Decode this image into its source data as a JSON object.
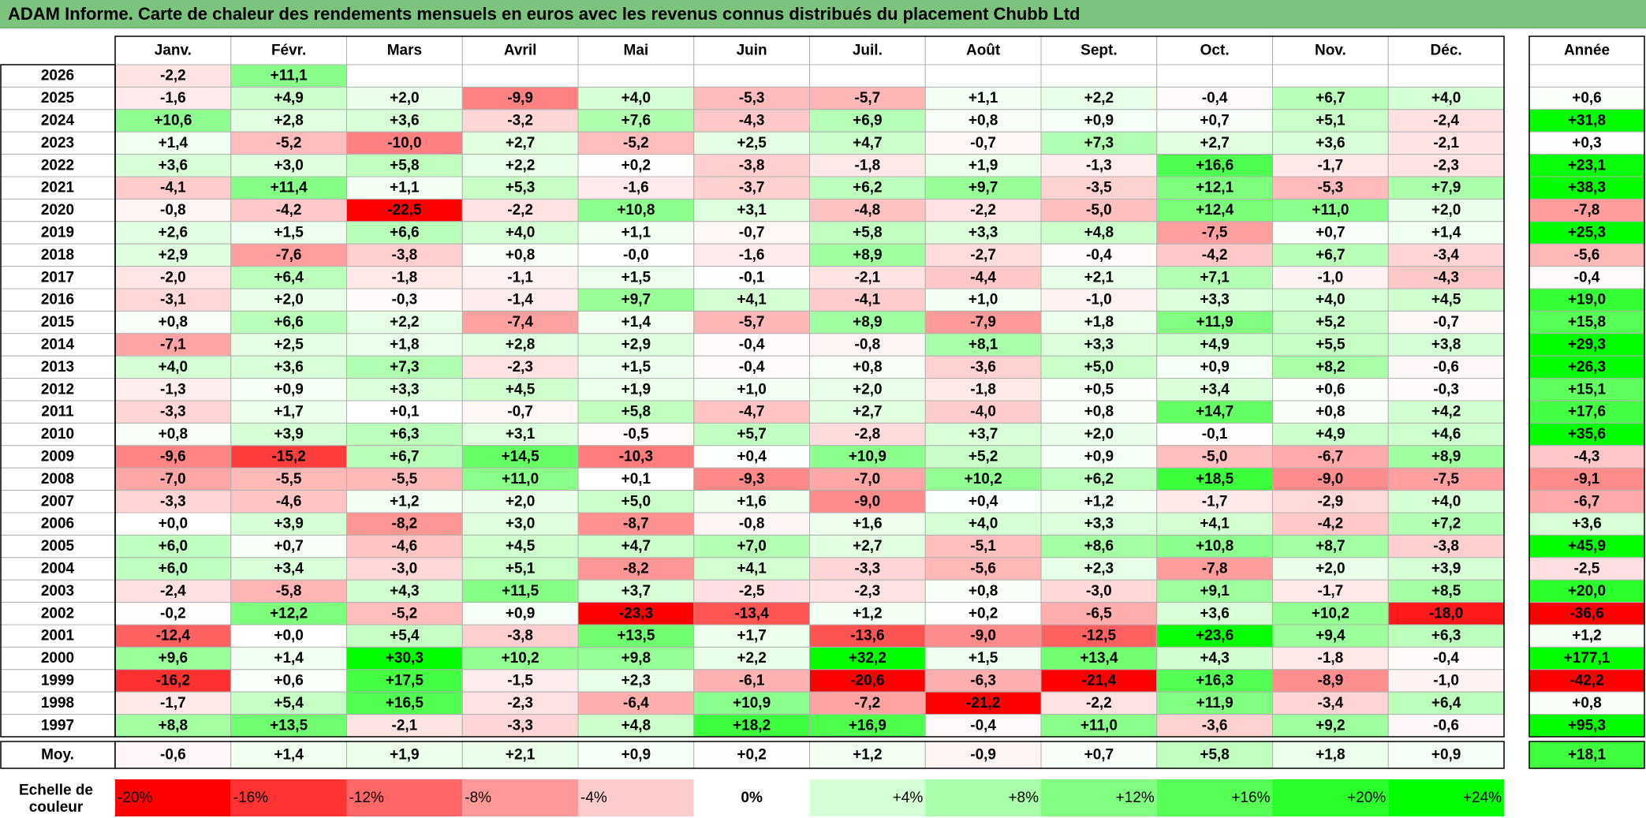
{
  "title": "ADAM Informe. Carte de chaleur des rendements mensuels en euros avec les revenus connus distribués du placement Chubb Ltd",
  "chart_data": {
    "type": "heatmap",
    "title": "ADAM Informe. Carte de chaleur des rendements mensuels en euros avec les revenus connus distribués du placement Chubb Ltd",
    "months": [
      "Janv.",
      "Févr.",
      "Mars",
      "Avril",
      "Mai",
      "Juin",
      "Juil.",
      "Août",
      "Sept.",
      "Oct.",
      "Nov.",
      "Déc."
    ],
    "annual_header": "Année",
    "rows": [
      {
        "year": "2026",
        "months": [
          "-2,2",
          "+11,1",
          "",
          "",
          "",
          "",
          "",
          "",
          "",
          "",
          "",
          ""
        ],
        "annual": ""
      },
      {
        "year": "2025",
        "months": [
          "-1,6",
          "+4,9",
          "+2,0",
          "-9,9",
          "+4,0",
          "-5,3",
          "-5,7",
          "+1,1",
          "+2,2",
          "-0,4",
          "+6,7",
          "+4,0"
        ],
        "annual": "+0,6"
      },
      {
        "year": "2024",
        "months": [
          "+10,6",
          "+2,8",
          "+3,6",
          "-3,2",
          "+7,6",
          "-4,3",
          "+6,9",
          "+0,8",
          "+0,9",
          "+0,7",
          "+5,1",
          "-2,4"
        ],
        "annual": "+31,8"
      },
      {
        "year": "2023",
        "months": [
          "+1,4",
          "-5,2",
          "-10,0",
          "+2,7",
          "-5,2",
          "+2,5",
          "+4,7",
          "-0,7",
          "+7,3",
          "+2,7",
          "+3,6",
          "-2,1"
        ],
        "annual": "+0,3"
      },
      {
        "year": "2022",
        "months": [
          "+3,6",
          "+3,0",
          "+5,8",
          "+2,2",
          "+0,2",
          "-3,8",
          "-1,8",
          "+1,9",
          "-1,3",
          "+16,6",
          "-1,7",
          "-2,3"
        ],
        "annual": "+23,1"
      },
      {
        "year": "2021",
        "months": [
          "-4,1",
          "+11,4",
          "+1,1",
          "+5,3",
          "-1,6",
          "-3,7",
          "+6,2",
          "+9,7",
          "-3,5",
          "+12,1",
          "-5,3",
          "+7,9"
        ],
        "annual": "+38,3"
      },
      {
        "year": "2020",
        "months": [
          "-0,8",
          "-4,2",
          "-22,5",
          "-2,2",
          "+10,8",
          "+3,1",
          "-4,8",
          "-2,2",
          "-5,0",
          "+12,4",
          "+11,0",
          "+2,0"
        ],
        "annual": "-7,8"
      },
      {
        "year": "2019",
        "months": [
          "+2,6",
          "+1,5",
          "+6,6",
          "+4,0",
          "+1,1",
          "-0,7",
          "+5,8",
          "+3,3",
          "+4,8",
          "-7,5",
          "+0,7",
          "+1,4"
        ],
        "annual": "+25,3"
      },
      {
        "year": "2018",
        "months": [
          "+2,9",
          "-7,6",
          "-3,8",
          "+0,8",
          "-0,0",
          "-1,6",
          "+8,9",
          "-2,7",
          "-0,4",
          "-4,2",
          "+6,7",
          "-3,4"
        ],
        "annual": "-5,6"
      },
      {
        "year": "2017",
        "months": [
          "-2,0",
          "+6,4",
          "-1,8",
          "-1,1",
          "+1,5",
          "-0,1",
          "-2,1",
          "-4,4",
          "+2,1",
          "+7,1",
          "-1,0",
          "-4,3"
        ],
        "annual": "-0,4"
      },
      {
        "year": "2016",
        "months": [
          "-3,1",
          "+2,0",
          "-0,3",
          "-1,4",
          "+9,7",
          "+4,1",
          "-4,1",
          "+1,0",
          "-1,0",
          "+3,3",
          "+4,0",
          "+4,5"
        ],
        "annual": "+19,0"
      },
      {
        "year": "2015",
        "months": [
          "+0,8",
          "+6,6",
          "+2,2",
          "-7,4",
          "+1,4",
          "-5,7",
          "+8,9",
          "-7,9",
          "+1,8",
          "+11,9",
          "+5,2",
          "-0,7"
        ],
        "annual": "+15,8"
      },
      {
        "year": "2014",
        "months": [
          "-7,1",
          "+2,5",
          "+1,8",
          "+2,8",
          "+2,9",
          "-0,4",
          "-0,8",
          "+8,1",
          "+3,3",
          "+4,9",
          "+5,5",
          "+3,8"
        ],
        "annual": "+29,3"
      },
      {
        "year": "2013",
        "months": [
          "+4,0",
          "+3,6",
          "+7,3",
          "-2,3",
          "+1,5",
          "-0,4",
          "+0,8",
          "-3,6",
          "+5,0",
          "+0,9",
          "+8,2",
          "-0,6"
        ],
        "annual": "+26,3"
      },
      {
        "year": "2012",
        "months": [
          "-1,3",
          "+0,9",
          "+3,3",
          "+4,5",
          "+1,9",
          "+1,0",
          "+2,0",
          "-1,8",
          "+0,5",
          "+3,4",
          "+0,6",
          "-0,3"
        ],
        "annual": "+15,1"
      },
      {
        "year": "2011",
        "months": [
          "-3,3",
          "+1,7",
          "+0,1",
          "-0,7",
          "+5,8",
          "-4,7",
          "+2,7",
          "-4,0",
          "+0,8",
          "+14,7",
          "+0,8",
          "+4,2"
        ],
        "annual": "+17,6"
      },
      {
        "year": "2010",
        "months": [
          "+0,8",
          "+3,9",
          "+6,3",
          "+3,1",
          "-0,5",
          "+5,7",
          "-2,8",
          "+3,7",
          "+2,0",
          "-0,1",
          "+4,9",
          "+4,6"
        ],
        "annual": "+35,6"
      },
      {
        "year": "2009",
        "months": [
          "-9,6",
          "-15,2",
          "+6,7",
          "+14,5",
          "-10,3",
          "+0,4",
          "+10,9",
          "+5,2",
          "+0,9",
          "-5,0",
          "-6,7",
          "+8,9"
        ],
        "annual": "-4,3"
      },
      {
        "year": "2008",
        "months": [
          "-7,0",
          "-5,5",
          "-5,5",
          "+11,0",
          "+0,1",
          "-9,3",
          "-7,0",
          "+10,2",
          "+6,2",
          "+18,5",
          "-9,0",
          "-7,5"
        ],
        "annual": "-9,1"
      },
      {
        "year": "2007",
        "months": [
          "-3,3",
          "-4,6",
          "+1,2",
          "+2,0",
          "+5,0",
          "+1,6",
          "-9,0",
          "+0,4",
          "+1,2",
          "-1,7",
          "-2,9",
          "+4,0"
        ],
        "annual": "-6,7"
      },
      {
        "year": "2006",
        "months": [
          "+0,0",
          "+3,9",
          "-8,2",
          "+3,0",
          "-8,7",
          "-0,8",
          "+1,6",
          "+4,0",
          "+3,3",
          "+4,1",
          "-4,2",
          "+7,2"
        ],
        "annual": "+3,6"
      },
      {
        "year": "2005",
        "months": [
          "+6,0",
          "+0,7",
          "-4,6",
          "+4,5",
          "+4,7",
          "+7,0",
          "+2,7",
          "-5,1",
          "+8,6",
          "+10,8",
          "+8,7",
          "-3,8"
        ],
        "annual": "+45,9"
      },
      {
        "year": "2004",
        "months": [
          "+6,0",
          "+3,4",
          "-3,0",
          "+5,1",
          "-8,2",
          "+4,1",
          "-3,3",
          "-5,6",
          "+2,3",
          "-7,8",
          "+2,0",
          "+3,9"
        ],
        "annual": "-2,5"
      },
      {
        "year": "2003",
        "months": [
          "-2,4",
          "-5,8",
          "+4,3",
          "+11,5",
          "+3,7",
          "-2,5",
          "-2,3",
          "+0,8",
          "-3,0",
          "+9,1",
          "-1,7",
          "+8,5"
        ],
        "annual": "+20,0"
      },
      {
        "year": "2002",
        "months": [
          "-0,2",
          "+12,2",
          "-5,2",
          "+0,9",
          "-23,3",
          "-13,4",
          "+1,2",
          "+0,2",
          "-6,5",
          "+3,6",
          "+10,2",
          "-18,0"
        ],
        "annual": "-36,6"
      },
      {
        "year": "2001",
        "months": [
          "-12,4",
          "+0,0",
          "+5,4",
          "-3,8",
          "+13,5",
          "+1,7",
          "-13,6",
          "-9,0",
          "-12,5",
          "+23,6",
          "+9,4",
          "+6,3"
        ],
        "annual": "+1,2"
      },
      {
        "year": "2000",
        "months": [
          "+9,6",
          "+1,4",
          "+30,3",
          "+10,2",
          "+9,8",
          "+2,2",
          "+32,2",
          "+1,5",
          "+13,4",
          "+4,3",
          "-1,8",
          "-0,4"
        ],
        "annual": "+177,1"
      },
      {
        "year": "1999",
        "months": [
          "-16,2",
          "+0,6",
          "+17,5",
          "-1,5",
          "+2,3",
          "-6,1",
          "-20,6",
          "-6,3",
          "-21,4",
          "+16,3",
          "-8,9",
          "-1,0"
        ],
        "annual": "-42,2"
      },
      {
        "year": "1998",
        "months": [
          "-1,7",
          "+5,4",
          "+16,5",
          "-2,3",
          "-6,4",
          "+10,9",
          "-7,2",
          "-21,2",
          "-2,2",
          "+11,9",
          "-3,4",
          "+6,4"
        ],
        "annual": "+0,8"
      },
      {
        "year": "1997",
        "months": [
          "+8,8",
          "+13,5",
          "-2,1",
          "-3,3",
          "+4,8",
          "+18,2",
          "+16,9",
          "-0,4",
          "+11,0",
          "-3,6",
          "+9,2",
          "-0,6"
        ],
        "annual": "+95,3"
      }
    ],
    "average": {
      "label": "Moy.",
      "months": [
        "-0,6",
        "+1,4",
        "+1,9",
        "+2,1",
        "+0,9",
        "+0,2",
        "+1,2",
        "-0,9",
        "+0,7",
        "+5,8",
        "+1,8",
        "+0,9"
      ],
      "annual": "+18,1"
    },
    "scale": {
      "label": [
        "Echelle de",
        "couleur"
      ],
      "stops": [
        "-20%",
        "-16%",
        "-12%",
        "-8%",
        "-4%",
        "0%",
        "+4%",
        "+8%",
        "+12%",
        "+16%",
        "+20%",
        "+24%"
      ],
      "stop_values": [
        -20,
        -16,
        -12,
        -8,
        -4,
        0,
        4,
        8,
        12,
        16,
        20,
        24
      ]
    },
    "colors": {
      "negative": "#FF0000",
      "neutral": "#FFFFFF",
      "positive": "#00FF00",
      "title_bar": "#7CC47E",
      "border": "#B0B0B0"
    }
  }
}
